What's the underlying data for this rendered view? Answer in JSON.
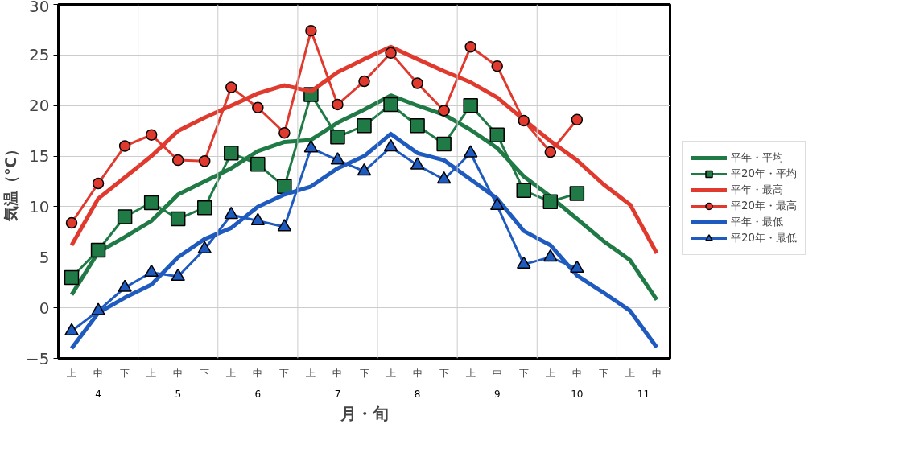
{
  "chart_data": {
    "type": "line",
    "xlabel": "月・旬",
    "ylabel": "気温（℃）",
    "categories": [
      "上",
      "中",
      "下",
      "上",
      "中",
      "下",
      "上",
      "中",
      "下",
      "上",
      "中",
      "下",
      "上",
      "中",
      "下",
      "上",
      "中",
      "下",
      "上",
      "中",
      "下",
      "上",
      "中"
    ],
    "annotations": [
      "4",
      "5",
      "6",
      "7",
      "8",
      "9",
      "10",
      "11"
    ],
    "ylim": [
      -5,
      30
    ],
    "yticks": [
      -5,
      0,
      5,
      10,
      15,
      20,
      25,
      30
    ],
    "grid": true,
    "legend": "right",
    "series": [
      {
        "name": "平年・平均",
        "color": "#1f7a45",
        "marker": "none",
        "values": [
          1.3,
          5.5,
          7.0,
          8.6,
          11.2,
          12.5,
          13.8,
          15.5,
          16.4,
          16.6,
          18.3,
          19.6,
          21.0,
          20.0,
          19.1,
          17.6,
          15.8,
          13.0,
          11.0,
          8.8,
          6.6,
          4.7,
          0.8
        ]
      },
      {
        "name": "平20年・平均",
        "color": "#1f7a45",
        "marker": "square",
        "values": [
          3.0,
          5.7,
          9.0,
          10.4,
          8.8,
          9.9,
          15.3,
          14.2,
          12.0,
          21.1,
          16.9,
          18.0,
          20.1,
          18.0,
          16.2,
          20.0,
          17.1,
          11.6,
          10.5,
          11.3,
          null,
          null,
          null
        ]
      },
      {
        "name": "平年・最高",
        "color": "#e03a2e",
        "marker": "none",
        "values": [
          6.2,
          10.8,
          12.9,
          15.0,
          17.5,
          18.8,
          20.0,
          21.2,
          22.0,
          21.4,
          23.3,
          24.6,
          25.8,
          24.6,
          23.4,
          22.3,
          20.8,
          18.6,
          16.5,
          14.6,
          12.2,
          10.2,
          5.4
        ]
      },
      {
        "name": "平20年・最高",
        "color": "#e03a2e",
        "marker": "circle",
        "values": [
          8.4,
          12.3,
          16.0,
          17.1,
          14.6,
          14.5,
          21.8,
          19.8,
          17.3,
          27.4,
          20.1,
          22.4,
          25.2,
          22.2,
          19.5,
          25.8,
          23.9,
          18.5,
          15.4,
          18.6,
          null,
          null,
          null
        ]
      },
      {
        "name": "平年・最低",
        "color": "#1f5bbf",
        "marker": "none",
        "values": [
          -4.0,
          -0.5,
          1.0,
          2.3,
          5.0,
          6.8,
          7.9,
          10.0,
          11.2,
          12.0,
          13.8,
          15.0,
          17.2,
          15.3,
          14.6,
          12.7,
          10.8,
          7.6,
          6.2,
          3.2,
          1.5,
          -0.3,
          -3.9
        ]
      },
      {
        "name": "平20年・最低",
        "color": "#1f5bbf",
        "marker": "triangle",
        "values": [
          -2.3,
          -0.3,
          2.0,
          3.5,
          3.1,
          5.8,
          9.2,
          8.6,
          8.0,
          15.8,
          14.6,
          13.5,
          15.9,
          14.1,
          12.7,
          15.3,
          10.1,
          4.3,
          5.0,
          3.9,
          null,
          null,
          null
        ]
      }
    ]
  }
}
